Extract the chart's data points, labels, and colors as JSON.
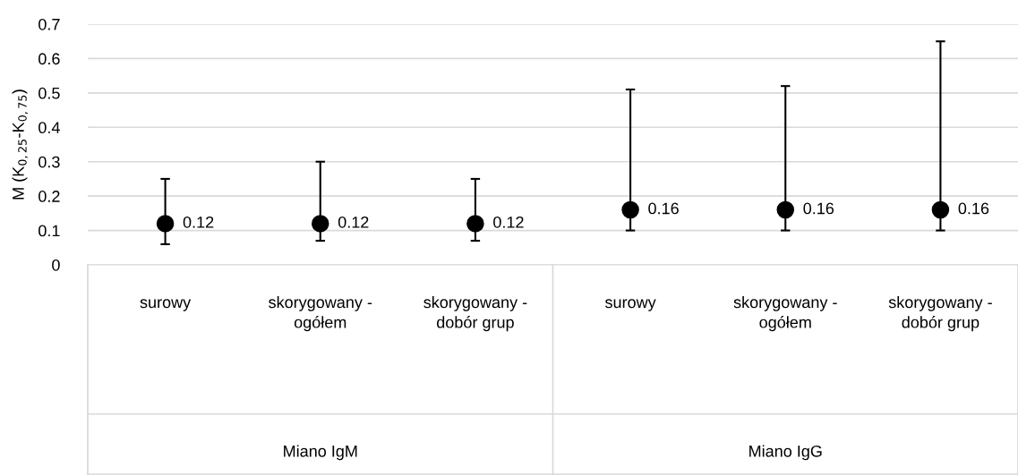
{
  "chart_data": {
    "type": "scatter",
    "ylabel": "M (K$_{0,25}$-K$_{0,75}$)",
    "categories": [
      "surowy",
      "skorygowany - ogółem",
      "skorygowany - dobór grup",
      "surowy",
      "skorygowany - ogółem",
      "skorygowany - dobór grup"
    ],
    "values": [
      0.12,
      0.12,
      0.12,
      0.16,
      0.16,
      0.16
    ],
    "errors": [
      [
        0.06,
        0.25
      ],
      [
        0.07,
        0.3
      ],
      [
        0.07,
        0.25
      ],
      [
        0.1,
        0.51
      ],
      [
        0.1,
        0.52
      ],
      [
        0.1,
        0.65
      ]
    ],
    "color": "#000000",
    "marker": "circle",
    "data_labels": true,
    "ylim": [
      0,
      0.7
    ],
    "yticks": [
      {
        "value": 0,
        "label": "0"
      },
      0.1,
      0.2,
      0.3,
      0.4,
      0.5,
      0.6,
      0.7
    ],
    "grid": "y",
    "annotations": [
      "Miano IgM",
      "Miano IgG"
    ]
  }
}
